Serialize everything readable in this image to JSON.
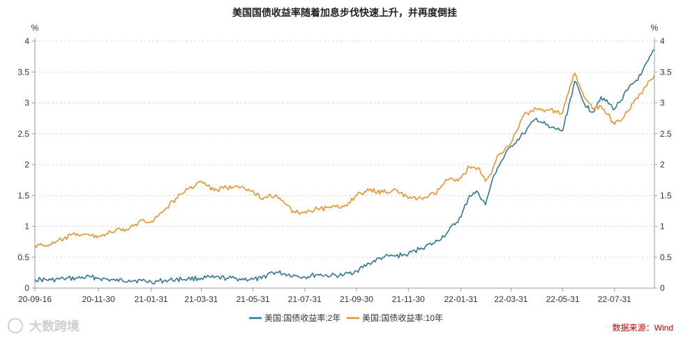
{
  "chart_data": {
    "type": "line",
    "title": "美国国债收益率随着加息步伐快速上升，并再度倒挂",
    "y_unit_left": "%",
    "y_unit_right": "%",
    "ylim": [
      0,
      4
    ],
    "y_ticks": [
      "0",
      "0.5",
      "1",
      "1.5",
      "2",
      "2.5",
      "3",
      "3.5",
      "4"
    ],
    "x_ticks": [
      "20-09-16",
      "20-11-30",
      "21-01-31",
      "21-03-31",
      "21-05-31",
      "21-07-31",
      "21-09-30",
      "21-11-30",
      "22-01-31",
      "22-03-31",
      "22-05-31",
      "22-07-31"
    ],
    "x_range": [
      "2020-09-16",
      "2022-09-16"
    ],
    "grid": "horizontal dashed",
    "legend_position": "bottom-center",
    "series": [
      {
        "name": "美国:国债收益率:2年",
        "color": "#2e7597",
        "points": [
          [
            "2020-09-16",
            0.14
          ],
          [
            "2020-10-05",
            0.13
          ],
          [
            "2020-10-20",
            0.15
          ],
          [
            "2020-11-05",
            0.16
          ],
          [
            "2020-11-20",
            0.18
          ],
          [
            "2020-11-30",
            0.16
          ],
          [
            "2020-12-20",
            0.12
          ],
          [
            "2021-01-05",
            0.13
          ],
          [
            "2021-01-20",
            0.12
          ],
          [
            "2021-01-31",
            0.1
          ],
          [
            "2021-02-15",
            0.12
          ],
          [
            "2021-03-01",
            0.14
          ],
          [
            "2021-03-15",
            0.15
          ],
          [
            "2021-03-31",
            0.16
          ],
          [
            "2021-04-15",
            0.17
          ],
          [
            "2021-04-30",
            0.16
          ],
          [
            "2021-05-15",
            0.15
          ],
          [
            "2021-05-31",
            0.14
          ],
          [
            "2021-06-10",
            0.15
          ],
          [
            "2021-06-20",
            0.25
          ],
          [
            "2021-06-30",
            0.25
          ],
          [
            "2021-07-20",
            0.2
          ],
          [
            "2021-07-31",
            0.18
          ],
          [
            "2021-08-15",
            0.22
          ],
          [
            "2021-08-31",
            0.2
          ],
          [
            "2021-09-15",
            0.21
          ],
          [
            "2021-09-30",
            0.28
          ],
          [
            "2021-10-15",
            0.4
          ],
          [
            "2021-10-31",
            0.5
          ],
          [
            "2021-11-15",
            0.52
          ],
          [
            "2021-11-30",
            0.55
          ],
          [
            "2021-12-15",
            0.65
          ],
          [
            "2021-12-31",
            0.73
          ],
          [
            "2022-01-15",
            0.9
          ],
          [
            "2022-01-31",
            1.15
          ],
          [
            "2022-02-10",
            1.5
          ],
          [
            "2022-02-20",
            1.55
          ],
          [
            "2022-03-01",
            1.35
          ],
          [
            "2022-03-08",
            1.7
          ],
          [
            "2022-03-15",
            1.95
          ],
          [
            "2022-03-31",
            2.3
          ],
          [
            "2022-04-15",
            2.5
          ],
          [
            "2022-04-30",
            2.75
          ],
          [
            "2022-05-15",
            2.6
          ],
          [
            "2022-05-31",
            2.55
          ],
          [
            "2022-06-14",
            3.35
          ],
          [
            "2022-06-25",
            3.0
          ],
          [
            "2022-07-05",
            2.85
          ],
          [
            "2022-07-15",
            3.1
          ],
          [
            "2022-07-31",
            2.9
          ],
          [
            "2022-08-15",
            3.2
          ],
          [
            "2022-08-31",
            3.45
          ],
          [
            "2022-09-16",
            3.86
          ]
        ]
      },
      {
        "name": "美国:国债收益率:10年",
        "color": "#e8922d",
        "points": [
          [
            "2020-09-16",
            0.69
          ],
          [
            "2020-10-05",
            0.7
          ],
          [
            "2020-10-20",
            0.8
          ],
          [
            "2020-11-05",
            0.88
          ],
          [
            "2020-11-20",
            0.85
          ],
          [
            "2020-11-30",
            0.84
          ],
          [
            "2020-12-20",
            0.93
          ],
          [
            "2021-01-05",
            0.95
          ],
          [
            "2021-01-20",
            1.1
          ],
          [
            "2021-01-31",
            1.08
          ],
          [
            "2021-02-15",
            1.25
          ],
          [
            "2021-03-01",
            1.45
          ],
          [
            "2021-03-15",
            1.6
          ],
          [
            "2021-03-31",
            1.73
          ],
          [
            "2021-04-15",
            1.58
          ],
          [
            "2021-04-30",
            1.63
          ],
          [
            "2021-05-15",
            1.62
          ],
          [
            "2021-05-31",
            1.58
          ],
          [
            "2021-06-10",
            1.45
          ],
          [
            "2021-06-20",
            1.52
          ],
          [
            "2021-06-30",
            1.45
          ],
          [
            "2021-07-20",
            1.22
          ],
          [
            "2021-07-31",
            1.24
          ],
          [
            "2021-08-15",
            1.28
          ],
          [
            "2021-08-31",
            1.3
          ],
          [
            "2021-09-15",
            1.32
          ],
          [
            "2021-09-30",
            1.5
          ],
          [
            "2021-10-15",
            1.58
          ],
          [
            "2021-10-31",
            1.55
          ],
          [
            "2021-11-15",
            1.6
          ],
          [
            "2021-11-30",
            1.45
          ],
          [
            "2021-12-15",
            1.45
          ],
          [
            "2021-12-31",
            1.52
          ],
          [
            "2022-01-15",
            1.75
          ],
          [
            "2022-01-31",
            1.78
          ],
          [
            "2022-02-10",
            1.97
          ],
          [
            "2022-02-20",
            1.95
          ],
          [
            "2022-03-01",
            1.73
          ],
          [
            "2022-03-08",
            1.85
          ],
          [
            "2022-03-15",
            2.15
          ],
          [
            "2022-03-31",
            2.35
          ],
          [
            "2022-04-15",
            2.8
          ],
          [
            "2022-04-30",
            2.9
          ],
          [
            "2022-05-15",
            2.88
          ],
          [
            "2022-05-31",
            2.85
          ],
          [
            "2022-06-14",
            3.48
          ],
          [
            "2022-06-25",
            3.1
          ],
          [
            "2022-07-05",
            2.9
          ],
          [
            "2022-07-15",
            2.95
          ],
          [
            "2022-07-31",
            2.65
          ],
          [
            "2022-08-15",
            2.85
          ],
          [
            "2022-08-31",
            3.15
          ],
          [
            "2022-09-16",
            3.45
          ]
        ]
      }
    ],
    "source": "数据来源：Wind",
    "watermark": "大数跨境"
  }
}
